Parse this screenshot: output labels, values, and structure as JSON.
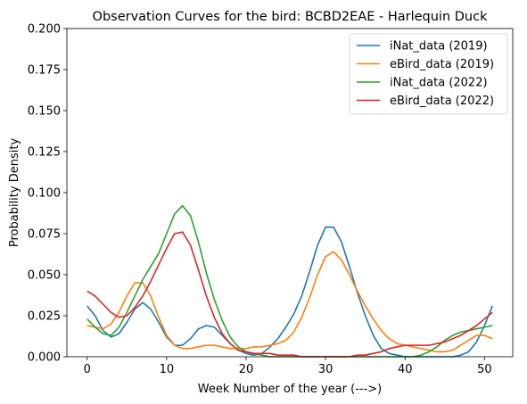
{
  "chart_data": {
    "type": "line",
    "title": "Observation Curves for the bird: BCBD2EAE - Harlequin Duck",
    "xlabel": "Week Number of the year (--->)",
    "ylabel": "Probability Density",
    "xlim": [
      -2.55,
      53.55
    ],
    "ylim": [
      0,
      0.2
    ],
    "xticks": [
      0,
      10,
      20,
      30,
      40,
      50
    ],
    "xtick_labels": [
      "0",
      "10",
      "20",
      "30",
      "40",
      "50"
    ],
    "yticks": [
      0,
      0.025,
      0.05,
      0.075,
      0.1,
      0.125,
      0.15,
      0.175,
      0.2
    ],
    "ytick_labels": [
      "0.000",
      "0.025",
      "0.050",
      "0.075",
      "0.100",
      "0.125",
      "0.150",
      "0.175",
      "0.200"
    ],
    "grid": false,
    "legend_position": "top-right",
    "x": [
      0,
      1,
      2,
      3,
      4,
      5,
      6,
      7,
      8,
      9,
      10,
      11,
      12,
      13,
      14,
      15,
      16,
      17,
      18,
      19,
      20,
      21,
      22,
      23,
      24,
      25,
      26,
      27,
      28,
      29,
      30,
      31,
      32,
      33,
      34,
      35,
      36,
      37,
      38,
      39,
      40,
      41,
      42,
      43,
      44,
      45,
      46,
      47,
      48,
      49,
      50,
      51
    ],
    "series": [
      {
        "name": "iNat_data (2019)",
        "color": "#1f77b4",
        "values": [
          0.031,
          0.025,
          0.016,
          0.012,
          0.014,
          0.021,
          0.029,
          0.033,
          0.029,
          0.021,
          0.012,
          0.007,
          0.007,
          0.011,
          0.017,
          0.019,
          0.018,
          0.013,
          0.008,
          0.004,
          0.002,
          0.001,
          0.002,
          0.006,
          0.011,
          0.018,
          0.026,
          0.037,
          0.052,
          0.068,
          0.079,
          0.079,
          0.07,
          0.055,
          0.039,
          0.025,
          0.013,
          0.005,
          0.002,
          0.001,
          0.0,
          0.0,
          0.0,
          0.0,
          0.0,
          0.0,
          0.0,
          0.001,
          0.003,
          0.009,
          0.019,
          0.031
        ]
      },
      {
        "name": "eBird_data (2019)",
        "color": "#ff7f0e",
        "values": [
          0.019,
          0.018,
          0.017,
          0.02,
          0.027,
          0.037,
          0.045,
          0.045,
          0.037,
          0.024,
          0.013,
          0.007,
          0.005,
          0.005,
          0.006,
          0.007,
          0.007,
          0.006,
          0.005,
          0.005,
          0.005,
          0.006,
          0.006,
          0.007,
          0.008,
          0.01,
          0.015,
          0.024,
          0.036,
          0.05,
          0.061,
          0.064,
          0.059,
          0.05,
          0.04,
          0.031,
          0.023,
          0.016,
          0.011,
          0.008,
          0.007,
          0.006,
          0.005,
          0.004,
          0.003,
          0.003,
          0.004,
          0.007,
          0.01,
          0.013,
          0.013,
          0.011
        ]
      },
      {
        "name": "iNat_data (2022)",
        "color": "#2ca02c",
        "values": [
          0.023,
          0.018,
          0.014,
          0.013,
          0.018,
          0.027,
          0.037,
          0.047,
          0.055,
          0.063,
          0.075,
          0.087,
          0.092,
          0.086,
          0.07,
          0.051,
          0.035,
          0.022,
          0.012,
          0.006,
          0.003,
          0.002,
          0.001,
          0.0,
          0.0,
          0.0,
          0.0,
          0.0,
          0.0,
          0.0,
          0.0,
          0.0,
          0.0,
          0.0,
          0.0,
          0.0,
          0.0,
          0.0,
          0.0,
          0.0,
          0.0,
          0.0,
          0.001,
          0.003,
          0.006,
          0.01,
          0.013,
          0.015,
          0.016,
          0.017,
          0.018,
          0.019
        ]
      },
      {
        "name": "eBird_data (2022)",
        "color": "#d62728",
        "values": [
          0.04,
          0.037,
          0.032,
          0.027,
          0.024,
          0.025,
          0.03,
          0.037,
          0.046,
          0.056,
          0.066,
          0.075,
          0.076,
          0.068,
          0.053,
          0.037,
          0.024,
          0.014,
          0.008,
          0.004,
          0.003,
          0.002,
          0.002,
          0.002,
          0.001,
          0.001,
          0.001,
          0.0,
          0.0,
          0.0,
          0.0,
          0.0,
          0.0,
          0.0,
          0.001,
          0.001,
          0.002,
          0.003,
          0.005,
          0.006,
          0.007,
          0.007,
          0.007,
          0.007,
          0.008,
          0.009,
          0.011,
          0.013,
          0.016,
          0.019,
          0.023,
          0.027
        ]
      }
    ]
  }
}
